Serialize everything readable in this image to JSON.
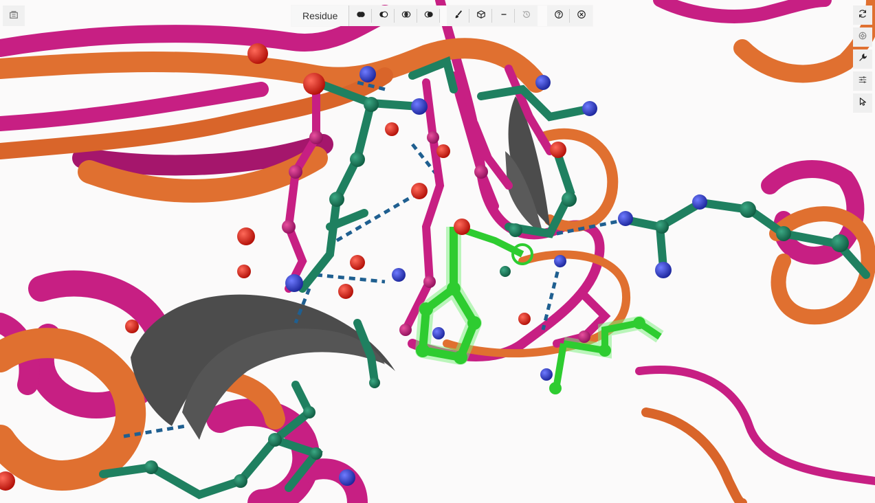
{
  "app": {
    "corner_button_icon": "sequence-panel-icon",
    "selection_mode_label": "Residue"
  },
  "colors": {
    "background": "#fbfafa",
    "chain_a": "#c71f83",
    "chain_b": "#e07030",
    "carbon_teal": "#1f8060",
    "oxygen": "#e01b10",
    "nitrogen": "#2f3fd0",
    "selection_green": "#2ecc30",
    "hbond_dash": "#1f5f90",
    "secondary_gray": "#4c4c4c"
  },
  "toolbar": {
    "buttons": [
      {
        "icon": "union-mode-icon"
      },
      {
        "icon": "subtract-mode-icon"
      },
      {
        "icon": "intersect-mode-icon"
      },
      {
        "icon": "set-mode-icon"
      },
      {
        "icon": "paint-brush-icon"
      },
      {
        "icon": "cube-icon"
      },
      {
        "icon": "minus-icon"
      },
      {
        "icon": "history-icon",
        "disabled": true
      },
      {
        "icon": "help-icon"
      },
      {
        "icon": "close-icon"
      }
    ]
  },
  "right_toolbar": [
    {
      "icon": "reset-camera-icon"
    },
    {
      "icon": "screenshot-icon"
    },
    {
      "icon": "wrench-icon"
    },
    {
      "icon": "settings-sliders-icon"
    },
    {
      "icon": "cursor-select-icon"
    }
  ]
}
